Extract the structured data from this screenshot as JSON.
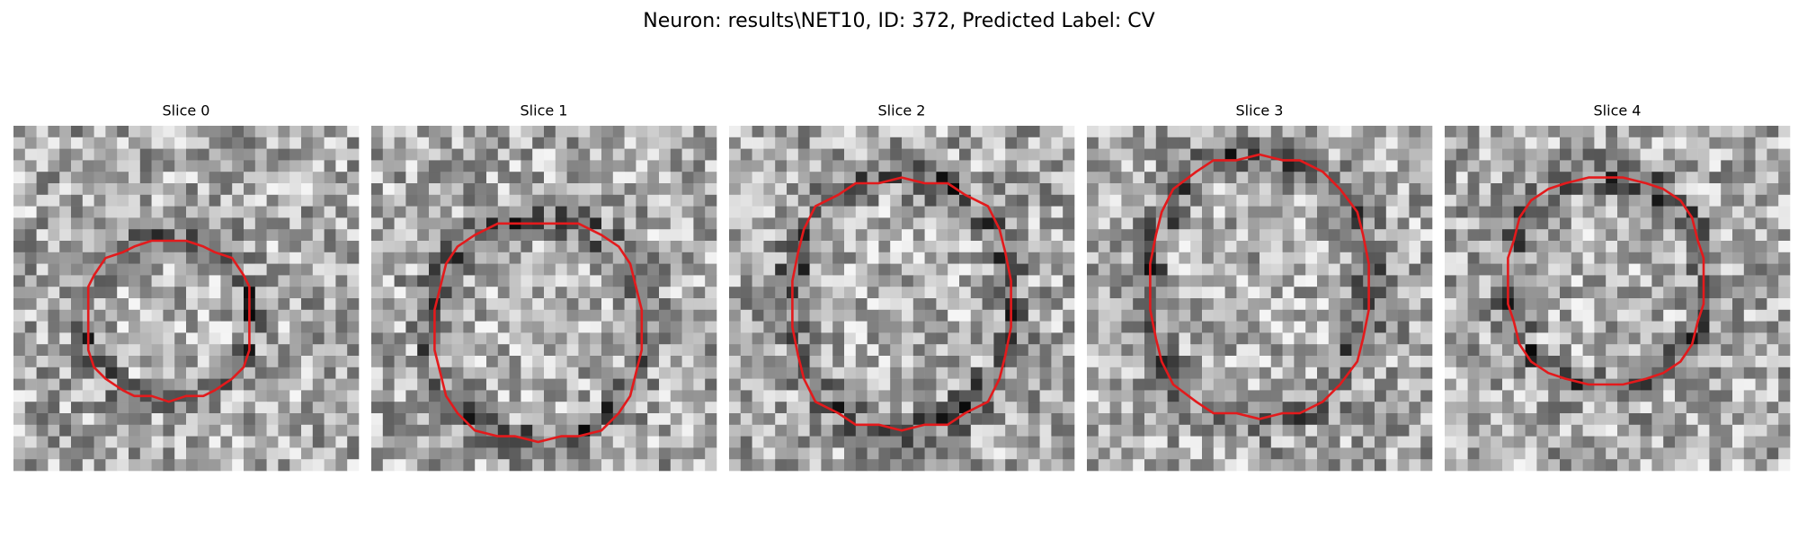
{
  "title": "Neuron: results\\NET10, ID: 372, Predicted Label: CV",
  "panels": [
    {
      "title": "Slice 0"
    },
    {
      "title": "Slice 1"
    },
    {
      "title": "Slice 2"
    },
    {
      "title": "Slice 3"
    },
    {
      "title": "Slice 4"
    }
  ]
}
